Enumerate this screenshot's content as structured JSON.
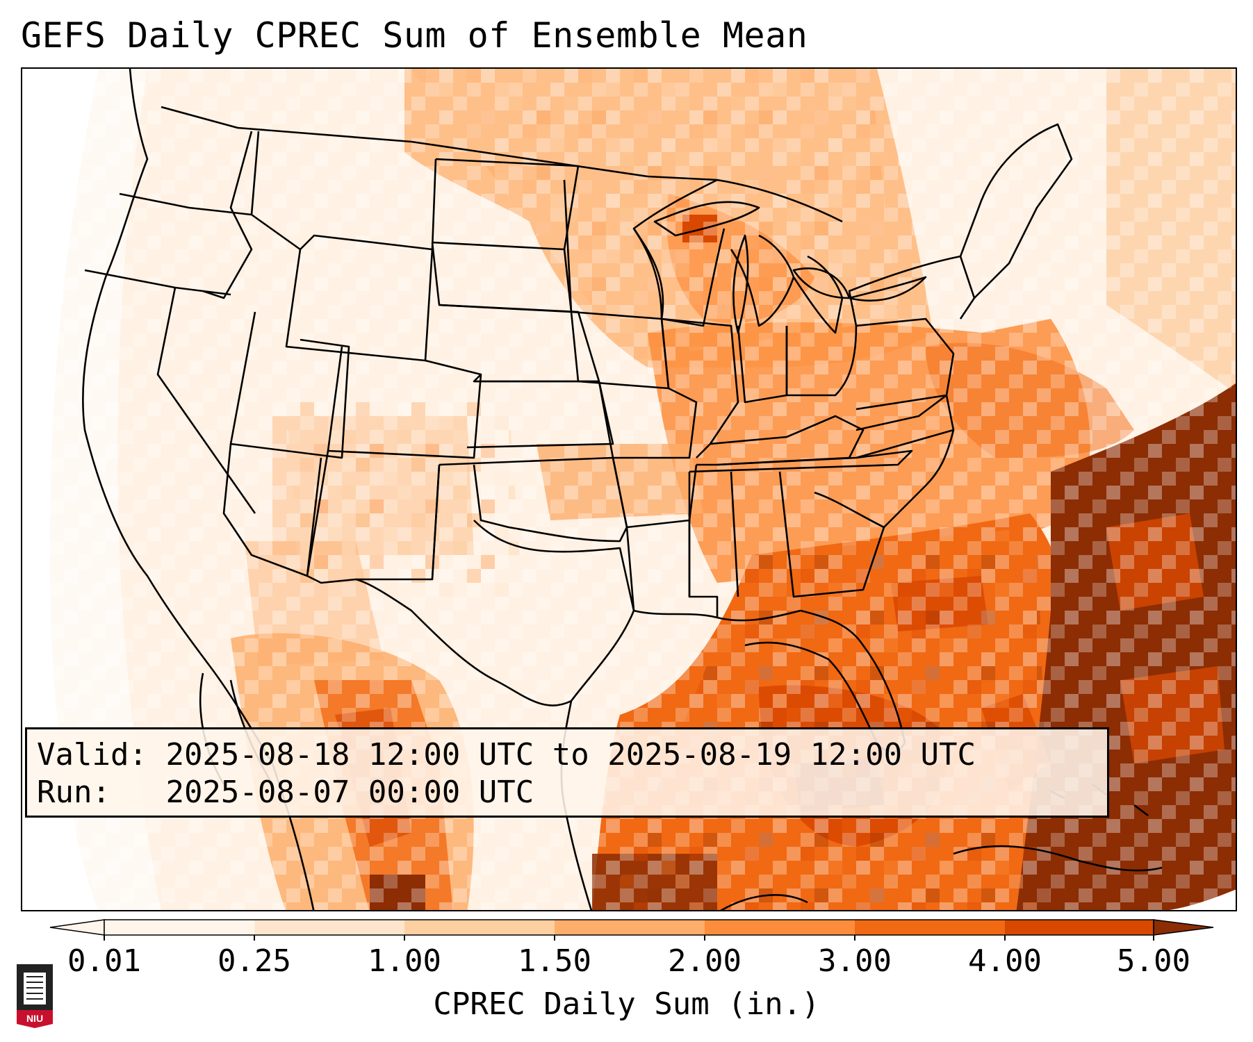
{
  "title": "GEFS Daily CPREC Sum of Ensemble Mean",
  "info": {
    "valid_label": "Valid:",
    "valid_value": "2025-08-18 12:00 UTC to 2025-08-19 12:00 UTC",
    "run_label": "Run:",
    "run_value": "2025-08-07 00:00 UTC"
  },
  "colorbar": {
    "label": "CPREC Daily Sum (in.)",
    "ticks": [
      "0.01",
      "0.25",
      "1.00",
      "1.50",
      "2.00",
      "3.00",
      "4.00",
      "5.00"
    ],
    "colors": [
      "#fff5eb",
      "#fee6ce",
      "#fdd0a2",
      "#fdae6b",
      "#fd8d3c",
      "#f16913",
      "#d94801",
      "#8c2d04"
    ]
  },
  "logo": {
    "text": "NIU",
    "color": "#c8102e"
  }
}
